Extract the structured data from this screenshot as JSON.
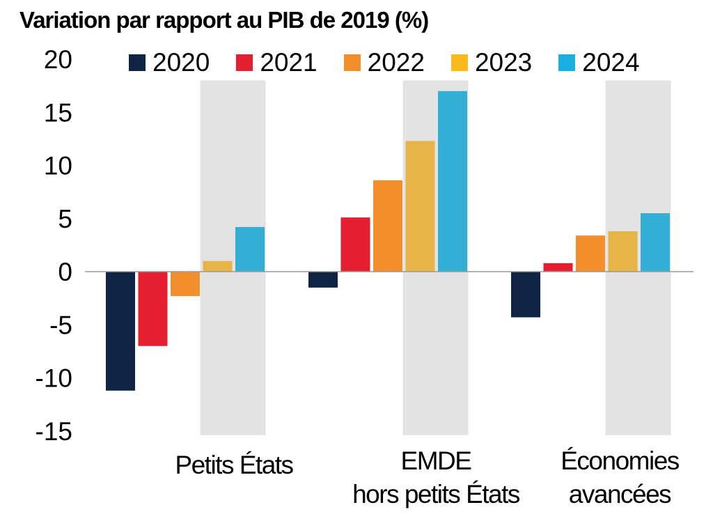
{
  "chart_data": {
    "type": "bar",
    "title": "Variation par rapport au PIB de 2019 (%)",
    "xlabel": "",
    "ylabel": "",
    "ylim": [
      -15,
      20
    ],
    "yticks": [
      20,
      15,
      10,
      5,
      0,
      -5,
      -10,
      -15
    ],
    "legend_position": "top",
    "categories": [
      [
        "Petits États"
      ],
      [
        "EMDE",
        "hors petits États"
      ],
      [
        "Économies",
        "avancées"
      ]
    ],
    "series": [
      {
        "name": "2020",
        "color": "#0f2443",
        "values": [
          -11.2,
          -1.5,
          -4.3
        ]
      },
      {
        "name": "2021",
        "color": "#e41f2f",
        "values": [
          -7.0,
          5.1,
          0.8
        ]
      },
      {
        "name": "2022",
        "color": "#f28e2c",
        "values": [
          -2.3,
          8.6,
          3.4
        ]
      },
      {
        "name": "2023",
        "color": "#e6b447",
        "values": [
          1.0,
          12.3,
          3.8
        ]
      },
      {
        "name": "2024",
        "color": "#33aed4",
        "values": [
          4.2,
          17.0,
          5.5
        ]
      }
    ],
    "legend_colors": [
      "#0f2443",
      "#e41f2f",
      "#f28e2c",
      "#fbb91d",
      "#1aaee1"
    ],
    "highlight_color": "#e3e3e3"
  }
}
